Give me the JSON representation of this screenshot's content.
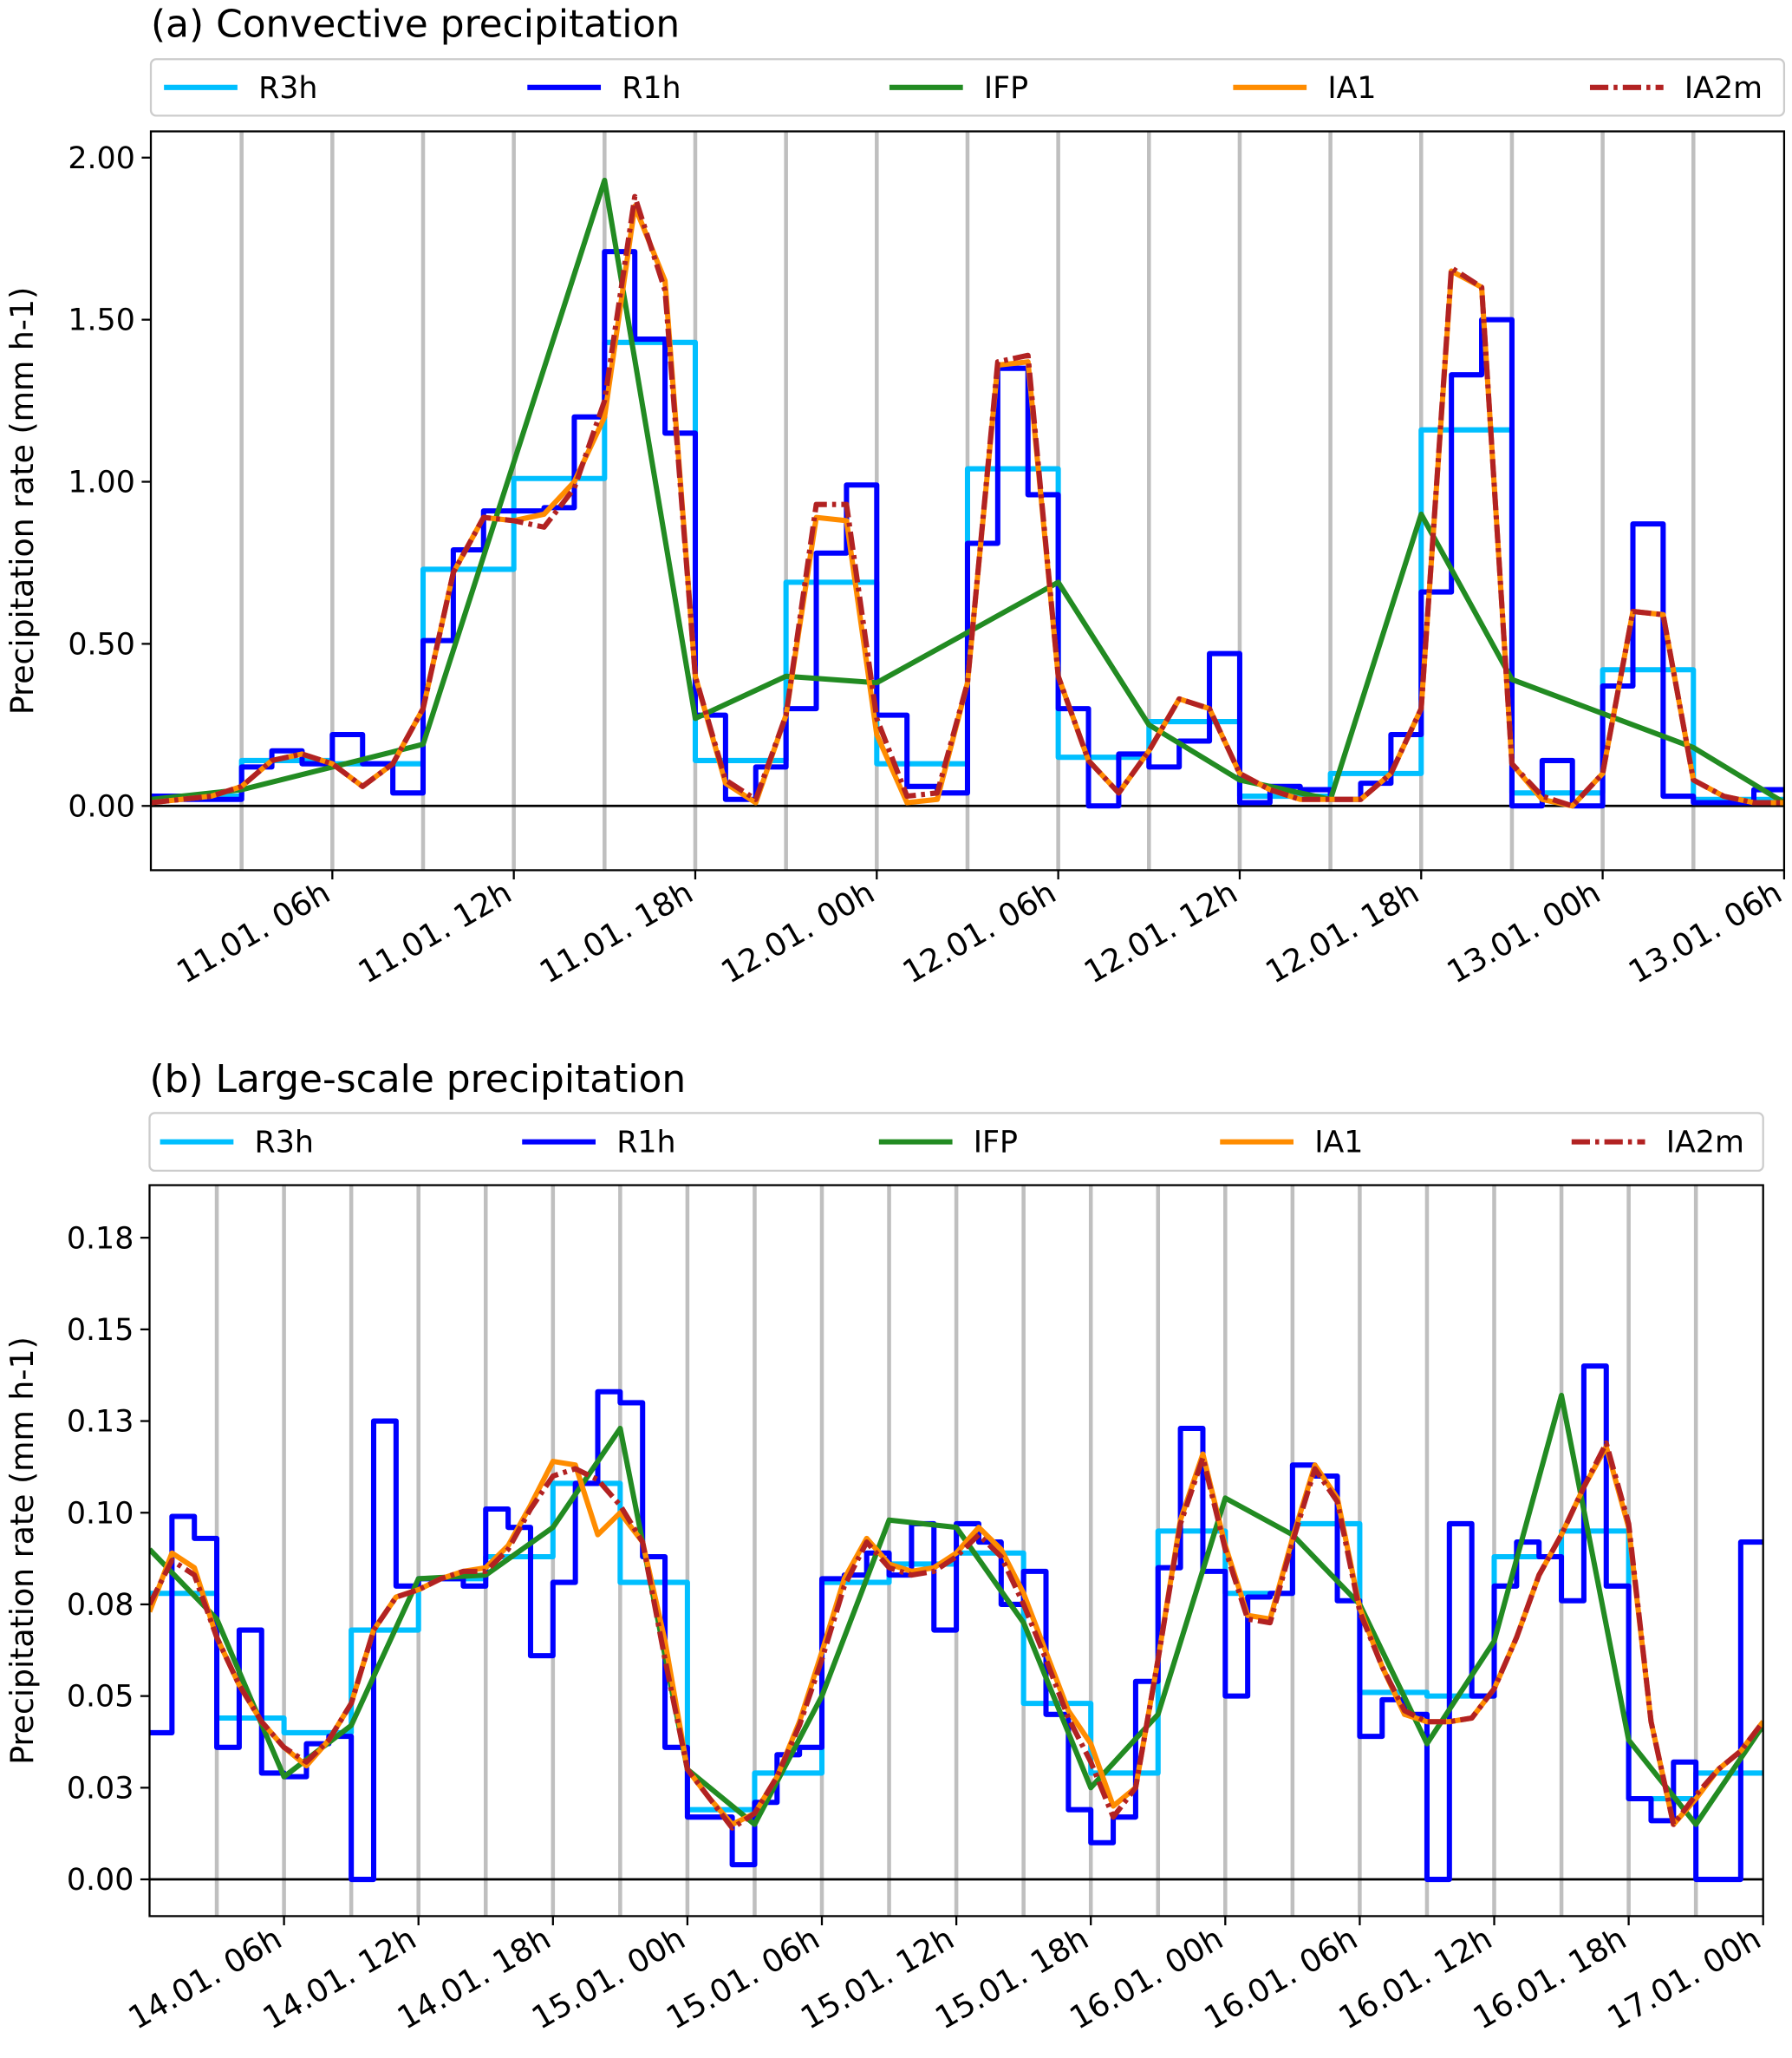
{
  "chart_data": [
    {
      "type": "line",
      "title": "(a) Convective precipitation",
      "ylabel": "Precipitation rate (mm h-1)",
      "xlabel": "",
      "ylim": [
        -0.2,
        2.07
      ],
      "xlim_hours": [
        0,
        54
      ],
      "grid": "vertical lines every 3 h",
      "legend_placement": "top, above plot",
      "yticks": [
        0,
        0.5,
        1.0,
        1.5,
        2.0
      ],
      "ytick_labels": [
        "0.00",
        "0.50",
        "1.00",
        "1.50",
        "2.00"
      ],
      "xtick_hours": [
        6,
        12,
        18,
        24,
        30,
        36,
        42,
        48,
        54
      ],
      "xtick_labels": [
        "11.01. 06h",
        "11.01. 12h",
        "11.01. 18h",
        "12.01. 00h",
        "12.01. 06h",
        "12.01. 12h",
        "12.01. 18h",
        "13.01. 00h",
        "13.01. 06h"
      ],
      "series": [
        {
          "name": "R3h",
          "color": "#00bfff",
          "kind": "step",
          "step_hours": 3,
          "values": [
            0.03,
            0.14,
            0.13,
            0.73,
            1.01,
            1.43,
            0.14,
            0.69,
            0.13,
            1.04,
            0.15,
            0.26,
            0.03,
            0.1,
            1.16,
            0.04,
            0.42,
            0.02
          ]
        },
        {
          "name": "R1h",
          "color": "#0000ff",
          "kind": "step",
          "step_hours": 1,
          "values": [
            0.03,
            0.02,
            0.02,
            0.12,
            0.17,
            0.13,
            0.22,
            0.13,
            0.04,
            0.51,
            0.79,
            0.91,
            0.91,
            0.92,
            1.2,
            1.71,
            1.44,
            1.15,
            0.28,
            0.02,
            0.12,
            0.3,
            0.78,
            0.99,
            0.28,
            0.06,
            0.04,
            0.81,
            1.35,
            0.96,
            0.3,
            0.0,
            0.16,
            0.12,
            0.2,
            0.47,
            0.01,
            0.06,
            0.05,
            0.02,
            0.07,
            0.22,
            0.66,
            1.33,
            1.5,
            0.0,
            0.14,
            0.0,
            0.37,
            0.87,
            0.03,
            0.01,
            0.01,
            0.05
          ]
        },
        {
          "name": "IFP",
          "color": "#228b22",
          "kind": "line",
          "x": [
            0,
            3,
            6,
            9,
            15,
            18,
            21,
            24,
            30,
            33,
            36,
            39,
            42,
            45,
            51,
            54
          ],
          "values": [
            0.02,
            0.05,
            0.12,
            0.19,
            1.93,
            0.27,
            0.4,
            0.38,
            0.69,
            0.25,
            0.08,
            0.02,
            0.9,
            0.39,
            0.18,
            0.01
          ]
        },
        {
          "name": "IA1",
          "color": "#ff8c00",
          "kind": "line",
          "step_hours": 1,
          "values": [
            0.01,
            0.02,
            0.03,
            0.06,
            0.14,
            0.16,
            0.13,
            0.06,
            0.13,
            0.3,
            0.72,
            0.89,
            0.88,
            0.9,
            1.0,
            1.2,
            1.85,
            1.62,
            0.4,
            0.07,
            0.01,
            0.28,
            0.89,
            0.88,
            0.22,
            0.01,
            0.02,
            0.38,
            1.36,
            1.37,
            0.4,
            0.14,
            0.04,
            0.17,
            0.33,
            0.3,
            0.1,
            0.05,
            0.02,
            0.02,
            0.02,
            0.1,
            0.3,
            1.65,
            1.6,
            0.13,
            0.02,
            0.0,
            0.1,
            0.6,
            0.59,
            0.08,
            0.03,
            0.01,
            0.01
          ]
        },
        {
          "name": "IA2m",
          "color": "#b22222",
          "kind": "line",
          "dash": "dashdot",
          "step_hours": 1,
          "values": [
            0.01,
            0.02,
            0.03,
            0.06,
            0.14,
            0.16,
            0.13,
            0.06,
            0.13,
            0.3,
            0.72,
            0.89,
            0.88,
            0.86,
            0.98,
            1.25,
            1.88,
            1.59,
            0.4,
            0.08,
            0.02,
            0.28,
            0.93,
            0.93,
            0.27,
            0.03,
            0.04,
            0.38,
            1.37,
            1.39,
            0.4,
            0.14,
            0.04,
            0.17,
            0.33,
            0.3,
            0.1,
            0.05,
            0.02,
            0.02,
            0.02,
            0.1,
            0.3,
            1.66,
            1.6,
            0.13,
            0.03,
            0.0,
            0.1,
            0.6,
            0.59,
            0.08,
            0.03,
            0.01,
            0.01
          ]
        }
      ]
    },
    {
      "type": "line",
      "title": "(b) Large-scale precipitation",
      "ylabel": "Precipitation rate (mm h-1)",
      "xlabel": "",
      "ylim": [
        -0.01,
        0.19
      ],
      "xlim_hours": [
        0,
        72
      ],
      "grid": "vertical lines every 3 h",
      "legend_placement": "top, above plot",
      "yticks": [
        0,
        0.025,
        0.05,
        0.075,
        0.1,
        0.125,
        0.15,
        0.175
      ],
      "ytick_labels": [
        "0.00",
        "0.03",
        "0.05",
        "0.08",
        "0.10",
        "0.13",
        "0.15",
        "0.18"
      ],
      "xtick_hours": [
        6,
        12,
        18,
        24,
        30,
        36,
        42,
        48,
        54,
        60,
        66,
        72
      ],
      "xtick_labels": [
        "14.01. 06h",
        "14.01. 12h",
        "14.01. 18h",
        "15.01. 00h",
        "15.01. 06h",
        "15.01. 12h",
        "15.01. 18h",
        "16.01. 00h",
        "16.01. 06h",
        "16.01. 12h",
        "16.01. 18h",
        "17.01. 00h"
      ],
      "series": [
        {
          "name": "R3h",
          "color": "#00bfff",
          "kind": "step",
          "step_hours": 3,
          "values": [
            0.078,
            0.044,
            0.04,
            0.068,
            0.082,
            0.088,
            0.108,
            0.081,
            0.019,
            0.029,
            0.081,
            0.086,
            0.089,
            0.048,
            0.029,
            0.095,
            0.078,
            0.097,
            0.051,
            0.05,
            0.088,
            0.095,
            0.022,
            0.029
          ]
        },
        {
          "name": "R1h",
          "color": "#0000ff",
          "kind": "step",
          "step_hours": 1,
          "values": [
            0.04,
            0.099,
            0.093,
            0.036,
            0.068,
            0.029,
            0.028,
            0.037,
            0.039,
            0.0,
            0.125,
            0.08,
            0.082,
            0.082,
            0.08,
            0.101,
            0.096,
            0.061,
            0.081,
            0.108,
            0.133,
            0.13,
            0.088,
            0.036,
            0.017,
            0.017,
            0.004,
            0.021,
            0.034,
            0.036,
            0.082,
            0.083,
            0.089,
            0.083,
            0.097,
            0.068,
            0.097,
            0.092,
            0.075,
            0.084,
            0.045,
            0.019,
            0.01,
            0.017,
            0.054,
            0.085,
            0.123,
            0.084,
            0.05,
            0.077,
            0.078,
            0.113,
            0.11,
            0.076,
            0.039,
            0.049,
            0.045,
            0.0,
            0.097,
            0.05,
            0.08,
            0.092,
            0.088,
            0.076,
            0.14,
            0.08,
            0.022,
            0.016,
            0.032,
            0.0,
            0.0,
            0.092
          ]
        },
        {
          "name": "IFP",
          "color": "#228b22",
          "kind": "line",
          "x": [
            0,
            3,
            6,
            9,
            12,
            15,
            18,
            21,
            24,
            27,
            30,
            33,
            36,
            39,
            42,
            45,
            48,
            51,
            54,
            57,
            60,
            63,
            66,
            69,
            72
          ],
          "values": [
            0.09,
            0.071,
            0.028,
            0.042,
            0.082,
            0.083,
            0.096,
            0.123,
            0.03,
            0.015,
            0.05,
            0.098,
            0.096,
            0.07,
            0.025,
            0.045,
            0.104,
            0.094,
            0.075,
            0.037,
            0.065,
            0.132,
            0.038,
            0.015,
            0.042
          ]
        },
        {
          "name": "IA1",
          "color": "#ff8c00",
          "kind": "line",
          "step_hours": 1,
          "values": [
            0.073,
            0.089,
            0.085,
            0.066,
            0.053,
            0.043,
            0.036,
            0.031,
            0.038,
            0.048,
            0.068,
            0.077,
            0.079,
            0.082,
            0.084,
            0.085,
            0.091,
            0.102,
            0.114,
            0.113,
            0.094,
            0.1,
            0.092,
            0.065,
            0.03,
            0.022,
            0.015,
            0.018,
            0.028,
            0.043,
            0.062,
            0.082,
            0.093,
            0.086,
            0.084,
            0.085,
            0.089,
            0.096,
            0.09,
            0.078,
            0.062,
            0.046,
            0.037,
            0.02,
            0.025,
            0.06,
            0.098,
            0.116,
            0.091,
            0.072,
            0.071,
            0.093,
            0.113,
            0.104,
            0.074,
            0.058,
            0.045,
            0.043,
            0.043,
            0.044,
            0.052,
            0.066,
            0.083,
            0.094,
            0.107,
            0.118,
            0.096,
            0.043,
            0.015,
            0.022,
            0.03,
            0.035,
            0.043
          ]
        },
        {
          "name": "IA2m",
          "color": "#b22222",
          "kind": "line",
          "dash": "dashdot",
          "step_hours": 1,
          "values": [
            0.075,
            0.087,
            0.083,
            0.066,
            0.053,
            0.043,
            0.036,
            0.032,
            0.038,
            0.048,
            0.068,
            0.077,
            0.079,
            0.082,
            0.084,
            0.084,
            0.09,
            0.101,
            0.11,
            0.112,
            0.109,
            0.102,
            0.092,
            0.06,
            0.03,
            0.022,
            0.014,
            0.018,
            0.028,
            0.042,
            0.06,
            0.08,
            0.092,
            0.085,
            0.083,
            0.084,
            0.088,
            0.094,
            0.088,
            0.075,
            0.06,
            0.044,
            0.032,
            0.017,
            0.025,
            0.06,
            0.097,
            0.115,
            0.09,
            0.071,
            0.07,
            0.092,
            0.112,
            0.103,
            0.073,
            0.058,
            0.046,
            0.043,
            0.043,
            0.044,
            0.052,
            0.066,
            0.083,
            0.094,
            0.107,
            0.119,
            0.097,
            0.043,
            0.015,
            0.023,
            0.03,
            0.035,
            0.043
          ]
        }
      ]
    }
  ]
}
